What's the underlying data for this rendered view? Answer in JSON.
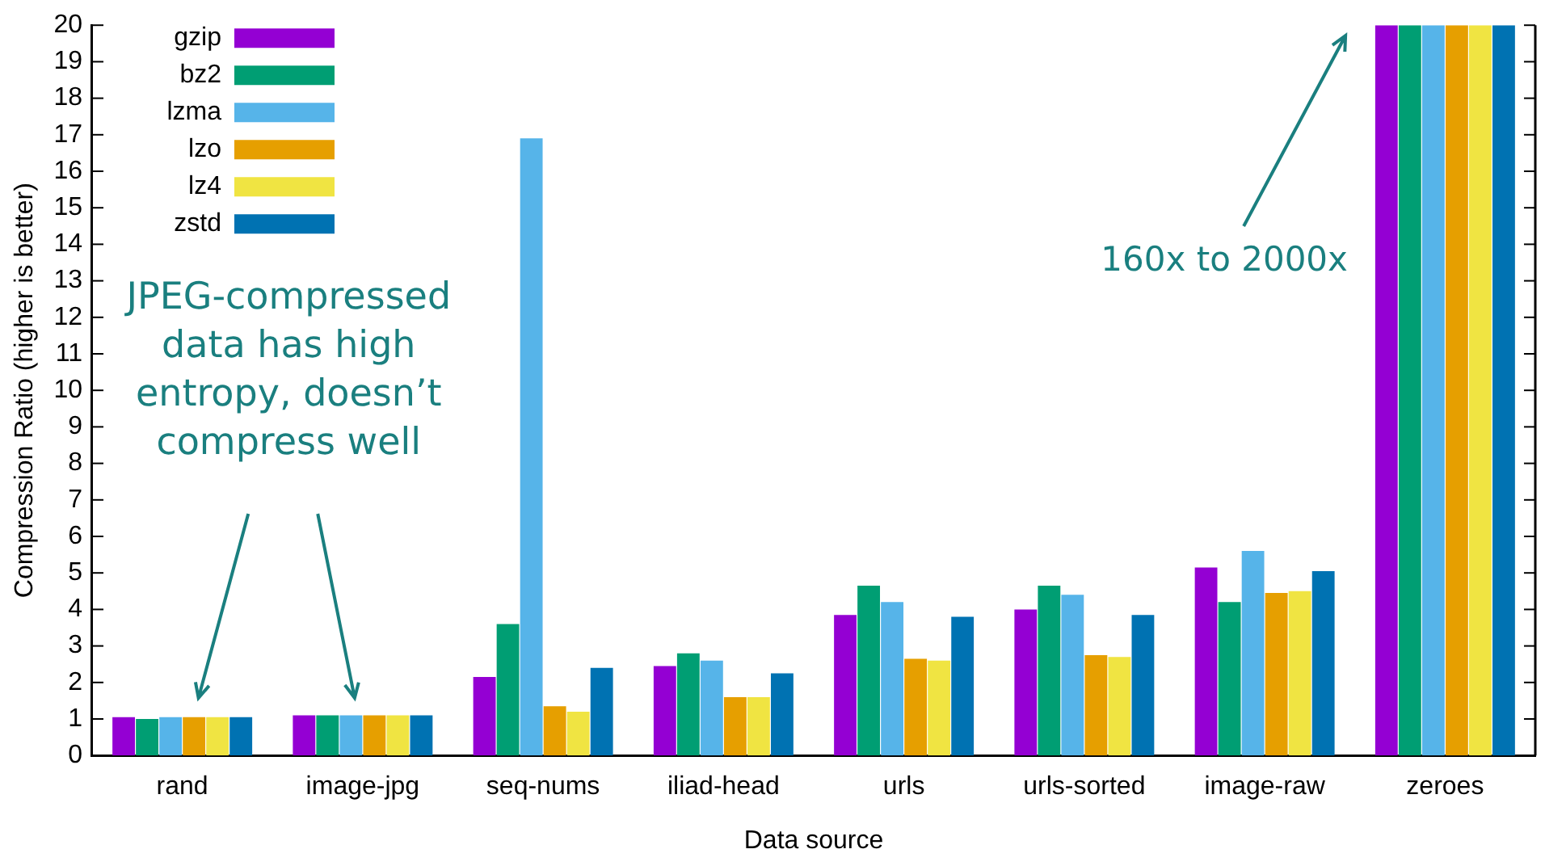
{
  "chart_data": {
    "type": "bar",
    "xlabel": "Data source",
    "ylabel": "Compression Ratio (higher is better)",
    "categories": [
      "rand",
      "image-jpg",
      "seq-nums",
      "iliad-head",
      "urls",
      "urls-sorted",
      "image-raw",
      "zeroes"
    ],
    "series": [
      {
        "name": "gzip",
        "color": "#9400d3",
        "values": [
          1.05,
          1.1,
          2.15,
          2.45,
          3.85,
          4.0,
          5.15,
          20
        ]
      },
      {
        "name": "bz2",
        "color": "#009e73",
        "values": [
          1.0,
          1.1,
          3.6,
          2.8,
          4.65,
          4.65,
          4.2,
          20
        ]
      },
      {
        "name": "lzma",
        "color": "#56b4e9",
        "values": [
          1.05,
          1.1,
          16.9,
          2.6,
          4.2,
          4.4,
          5.6,
          20
        ]
      },
      {
        "name": "lzo",
        "color": "#e69f00",
        "values": [
          1.05,
          1.1,
          1.35,
          1.6,
          2.65,
          2.75,
          4.45,
          20
        ]
      },
      {
        "name": "lz4",
        "color": "#f0e442",
        "values": [
          1.05,
          1.1,
          1.2,
          1.6,
          2.6,
          2.7,
          4.5,
          20
        ]
      },
      {
        "name": "zstd",
        "color": "#0072b2",
        "values": [
          1.05,
          1.1,
          2.4,
          2.25,
          3.8,
          3.85,
          5.05,
          20
        ]
      }
    ],
    "ylim": [
      0,
      20
    ],
    "yticks": [
      0,
      1,
      2,
      3,
      4,
      5,
      6,
      7,
      8,
      9,
      10,
      11,
      12,
      13,
      14,
      15,
      16,
      17,
      18,
      19,
      20
    ],
    "legend": "top left",
    "annotations": [
      "JPEG-compressed\ndata has high\nentropy, doesn’t\ncompress well",
      "160x to 2000x"
    ]
  }
}
